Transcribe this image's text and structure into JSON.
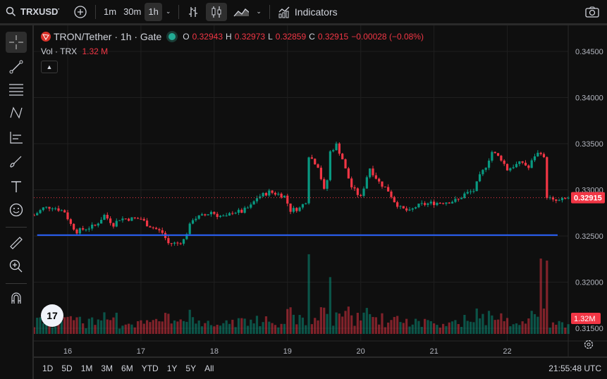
{
  "toolbar": {
    "symbol": "TRXUSDT",
    "intervals": [
      "1m",
      "30m",
      "1h"
    ],
    "active_interval": "1h",
    "indicators_label": "Indicators"
  },
  "legend": {
    "title": "TRON/Tether · 1h · Gate",
    "o_label": "O",
    "o": "0.32943",
    "h_label": "H",
    "h": "0.32973",
    "l_label": "L",
    "l": "0.32859",
    "c_label": "C",
    "c": "0.32915",
    "change": "−0.00028 (−0.08%)",
    "vol_label": "Vol · TRX",
    "vol": "1.32 M"
  },
  "colors": {
    "up": "#089981",
    "down": "#f23645",
    "line": "#2962ff",
    "bg": "#0f0f0f"
  },
  "chart_data": {
    "type": "candlestick",
    "price_ticks": [
      "0.34500",
      "0.34000",
      "0.33500",
      "0.33000",
      "0.32500",
      "0.32000",
      "0.31500"
    ],
    "price_range": [
      0.3145,
      0.3465
    ],
    "date_ticks": [
      "16",
      "17",
      "18",
      "19",
      "20",
      "21",
      "22"
    ],
    "last_price": "0.32915",
    "last_volume": "1.32M",
    "horizontal_line_price": 0.3251,
    "close_path_hours_from_16th": [
      [
        -11,
        0.32725
      ],
      [
        -8,
        0.32802
      ],
      [
        -5,
        0.32817
      ],
      [
        -1,
        0.32763
      ],
      [
        1,
        0.32626
      ],
      [
        3,
        0.3255
      ],
      [
        5,
        0.32573
      ],
      [
        9,
        0.32611
      ],
      [
        12,
        0.32725
      ],
      [
        15,
        0.32626
      ],
      [
        17,
        0.32687
      ],
      [
        21,
        0.32687
      ],
      [
        24,
        0.32687
      ],
      [
        26,
        0.32626
      ],
      [
        29,
        0.32573
      ],
      [
        31,
        0.32535
      ],
      [
        33,
        0.3242
      ],
      [
        36,
        0.3242
      ],
      [
        38,
        0.32458
      ],
      [
        39,
        0.32535
      ],
      [
        41,
        0.32687
      ],
      [
        45,
        0.32725
      ],
      [
        47,
        0.32763
      ],
      [
        49,
        0.32725
      ],
      [
        52,
        0.32702
      ],
      [
        54,
        0.32763
      ],
      [
        57,
        0.32763
      ],
      [
        60,
        0.32825
      ],
      [
        62,
        0.32916
      ],
      [
        66,
        0.32977
      ],
      [
        69,
        0.32954
      ],
      [
        71,
        0.32931
      ],
      [
        73,
        0.32779
      ],
      [
        76,
        0.32802
      ],
      [
        78,
        0.32878
      ],
      [
        79,
        0.33374
      ],
      [
        82,
        0.33259
      ],
      [
        84,
        0.32992
      ],
      [
        85,
        0.33107
      ],
      [
        86,
        0.33412
      ],
      [
        88,
        0.33488
      ],
      [
        90,
        0.33336
      ],
      [
        91,
        0.33221
      ],
      [
        93,
        0.33031
      ],
      [
        96,
        0.32916
      ],
      [
        98,
        0.33145
      ],
      [
        99,
        0.33237
      ],
      [
        100,
        0.33183
      ],
      [
        102,
        0.33084
      ],
      [
        105,
        0.32992
      ],
      [
        107,
        0.32878
      ],
      [
        109,
        0.32802
      ],
      [
        112,
        0.32763
      ],
      [
        114,
        0.32817
      ],
      [
        116,
        0.3284
      ],
      [
        119,
        0.32855
      ],
      [
        122,
        0.32863
      ],
      [
        126,
        0.32878
      ],
      [
        128,
        0.32893
      ],
      [
        130,
        0.32954
      ],
      [
        133,
        0.32992
      ],
      [
        135,
        0.33145
      ],
      [
        137,
        0.33259
      ],
      [
        139,
        0.33412
      ],
      [
        142,
        0.33336
      ],
      [
        144,
        0.33221
      ],
      [
        146,
        0.33259
      ],
      [
        149,
        0.33298
      ],
      [
        151,
        0.33237
      ],
      [
        153,
        0.33374
      ],
      [
        155,
        0.33412
      ],
      [
        156,
        0.33336
      ],
      [
        157,
        0.32931
      ],
      [
        159,
        0.32878
      ],
      [
        161,
        0.32878
      ],
      [
        164,
        0.32915
      ]
    ],
    "volume_spikes_hours": [
      [
        155,
        1.32
      ],
      [
        155.5,
        1.32
      ]
    ]
  },
  "bottom": {
    "ranges": [
      "1D",
      "5D",
      "1M",
      "3M",
      "6M",
      "YTD",
      "1Y",
      "5Y",
      "All"
    ],
    "clock": "21:55:48 UTC"
  },
  "logo": "TV"
}
